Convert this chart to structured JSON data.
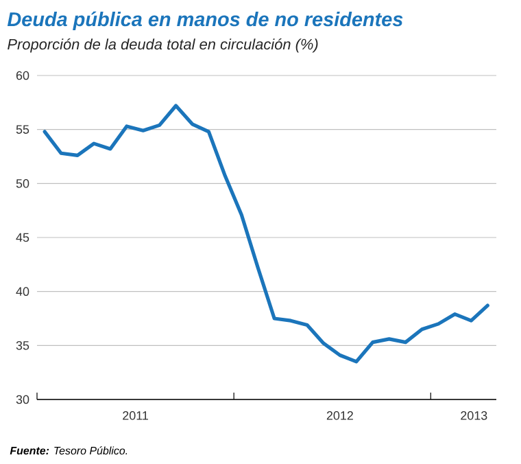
{
  "chart_data": {
    "type": "line",
    "title": "Deuda pública en manos de no residentes",
    "subtitle": "Proporción de la deuda total en circulación (%)",
    "x": [
      "2011-01-15",
      "2011-02-15",
      "2011-03-15",
      "2011-04-15",
      "2011-05-15",
      "2011-06-15",
      "2011-07-15",
      "2011-08-15",
      "2011-09-15",
      "2011-10-15",
      "2011-11-15",
      "2011-12-15",
      "2012-01-15",
      "2012-02-15",
      "2012-03-15",
      "2012-04-15",
      "2012-05-15",
      "2012-06-15",
      "2012-07-15",
      "2012-08-15",
      "2012-09-15",
      "2012-10-15",
      "2012-11-15",
      "2012-12-15",
      "2013-01-15",
      "2013-02-15",
      "2013-03-15",
      "2013-04-15"
    ],
    "values": [
      54.8,
      52.8,
      52.6,
      53.7,
      53.2,
      55.3,
      54.9,
      55.4,
      57.2,
      55.5,
      54.8,
      50.7,
      47.1,
      42.2,
      37.5,
      37.3,
      36.9,
      35.2,
      34.1,
      33.5,
      35.3,
      35.6,
      35.3,
      36.5,
      37.0,
      37.9,
      37.3,
      38.7
    ],
    "color": "#1b75bb",
    "xlim": [
      "2011-01-01",
      "2013-05-01"
    ],
    "xticks": [
      {
        "value": "2011-01-01",
        "label": null
      },
      {
        "value": "2011-07-01",
        "label": "2011"
      },
      {
        "value": "2012-01-01",
        "label": null
      },
      {
        "value": "2012-07-15",
        "label": "2012"
      },
      {
        "value": "2013-01-01",
        "label": null
      },
      {
        "value": "2013-03-20",
        "label": "2013"
      }
    ],
    "ylim": [
      30,
      60
    ],
    "yticks": [
      30,
      35,
      40,
      45,
      50,
      55,
      60
    ],
    "grid": "y",
    "annotations": [
      "**Fuente:** Tesoro Público."
    ]
  }
}
